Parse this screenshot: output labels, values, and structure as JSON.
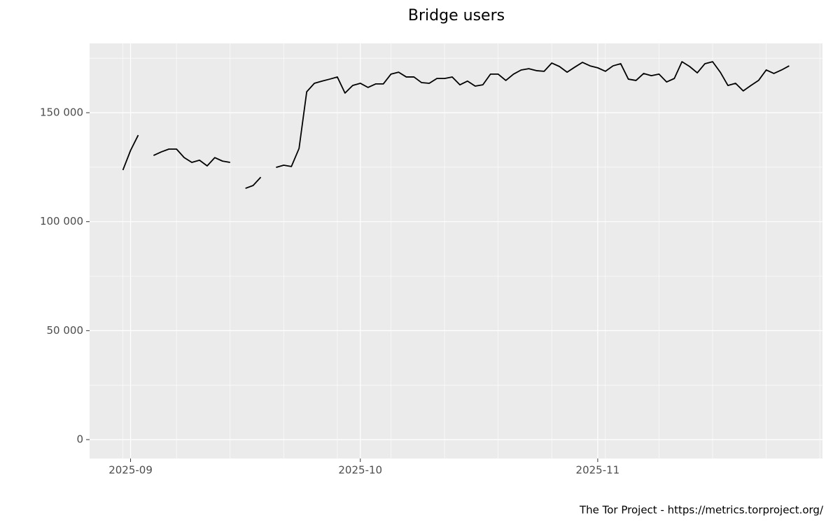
{
  "chart_data": {
    "type": "line",
    "title": "Bridge users",
    "caption": "The Tor Project - https://metrics.torproject.org/",
    "categories": [
      null,
      "2025-09",
      null,
      null,
      null,
      null,
      null,
      null,
      null,
      null,
      null,
      null,
      null,
      null,
      null,
      null,
      null,
      null,
      null,
      null,
      null,
      null,
      null,
      null,
      null,
      null,
      null,
      null,
      null,
      null,
      null,
      "2025-10",
      null,
      null,
      null,
      null,
      null,
      null,
      null,
      null,
      null,
      null,
      null,
      null,
      null,
      null,
      null,
      null,
      null,
      null,
      null,
      null,
      null,
      null,
      null,
      null,
      null,
      null,
      null,
      null,
      null,
      null,
      "2025-11",
      null,
      null,
      null,
      null,
      null,
      null,
      null,
      null,
      null,
      null,
      null,
      null,
      null,
      null,
      null,
      null,
      null,
      null,
      null,
      null,
      null,
      null,
      null,
      null,
      null
    ],
    "series": [
      {
        "color": "#000000",
        "values": [
          123700,
          132700,
          139700,
          null,
          130400,
          132000,
          133300,
          133300,
          129400,
          127200,
          128200,
          125600,
          129400,
          127800,
          127200,
          null,
          115300,
          116600,
          120400,
          null,
          124900,
          125900,
          125300,
          133600,
          159600,
          163500,
          164500,
          165400,
          166400,
          159000,
          162500,
          163500,
          161600,
          163200,
          163200,
          167700,
          168600,
          166400,
          166400,
          163800,
          163500,
          165700,
          165700,
          166400,
          162800,
          164500,
          162200,
          162800,
          167700,
          167700,
          164800,
          167700,
          169600,
          170200,
          169300,
          169000,
          172800,
          171200,
          168600,
          170900,
          173100,
          171500,
          170600,
          169000,
          171500,
          172500,
          165400,
          164800,
          168000,
          167000,
          167700,
          164100,
          165700,
          173400,
          171200,
          168300,
          172500,
          173400,
          168600,
          162500,
          163500,
          160000,
          162500,
          164800,
          169600,
          168000,
          169600,
          171500
        ]
      }
    ],
    "ylim": [
      -8670,
      181800
    ],
    "yticks": [
      {
        "value": 0,
        "label": "0"
      },
      {
        "value": 50000,
        "label": "50 000"
      },
      {
        "value": 100000,
        "label": "100 000"
      },
      {
        "value": 150000,
        "label": "150 000"
      }
    ],
    "grid": true
  }
}
